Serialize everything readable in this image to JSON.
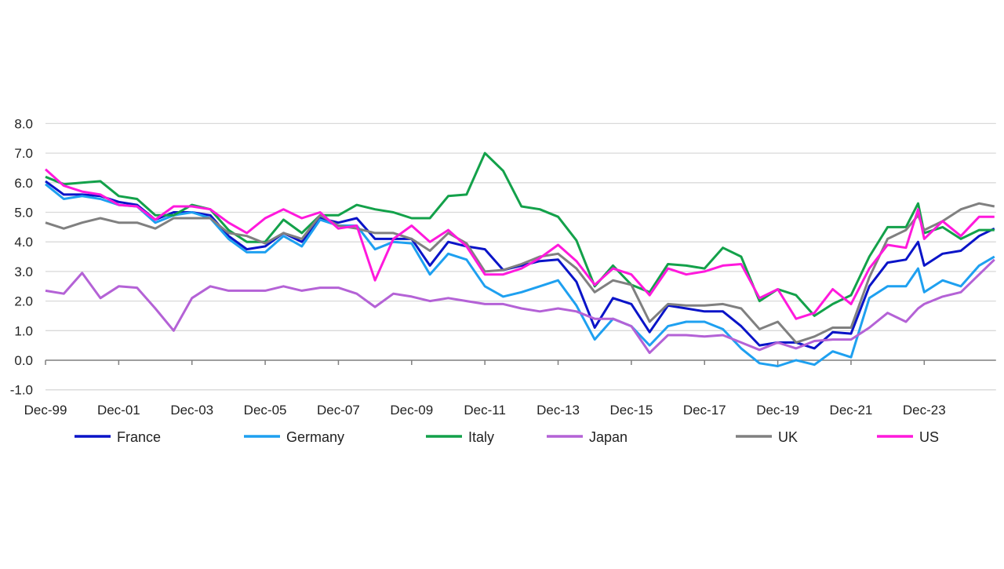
{
  "chart_data": {
    "type": "line",
    "title": "",
    "xlabel": "",
    "ylabel": "",
    "ylim": [
      -1,
      8
    ],
    "y_ticks": [
      "-1.0",
      "0.0",
      "1.0",
      "2.0",
      "3.0",
      "4.0",
      "5.0",
      "6.0",
      "7.0",
      "8.0"
    ],
    "x_tick_labels": [
      "Dec-99",
      "Dec-01",
      "Dec-03",
      "Dec-05",
      "Dec-07",
      "Dec-09",
      "Dec-11",
      "Dec-13",
      "Dec-15",
      "Dec-17",
      "Dec-19",
      "Dec-21",
      "Dec-23"
    ],
    "x_range": [
      "1999-12",
      "2025-11"
    ],
    "grid": "horizontal",
    "legend_position": "bottom",
    "x": [
      "1999-12",
      "2000-06",
      "2000-12",
      "2001-06",
      "2001-12",
      "2002-06",
      "2002-12",
      "2003-06",
      "2003-12",
      "2004-06",
      "2004-12",
      "2005-06",
      "2005-12",
      "2006-06",
      "2006-12",
      "2007-06",
      "2007-12",
      "2008-06",
      "2008-12",
      "2009-06",
      "2009-12",
      "2010-06",
      "2010-12",
      "2011-06",
      "2011-12",
      "2012-06",
      "2012-12",
      "2013-06",
      "2013-12",
      "2014-06",
      "2014-12",
      "2015-06",
      "2015-12",
      "2016-06",
      "2016-12",
      "2017-06",
      "2017-12",
      "2018-06",
      "2018-12",
      "2019-06",
      "2019-12",
      "2020-06",
      "2020-12",
      "2021-06",
      "2021-12",
      "2022-06",
      "2022-12",
      "2023-06",
      "2023-10",
      "2023-12",
      "2024-06",
      "2024-12",
      "2025-06",
      "2025-11"
    ],
    "series": [
      {
        "name": "France",
        "color": "#0a14c8",
        "values": [
          6.05,
          5.6,
          5.6,
          5.55,
          5.35,
          5.25,
          4.75,
          5.0,
          5.0,
          4.9,
          4.2,
          3.75,
          3.85,
          4.3,
          4.0,
          4.8,
          4.65,
          4.8,
          4.1,
          4.1,
          4.1,
          3.2,
          4.0,
          3.85,
          3.75,
          3.05,
          3.2,
          3.35,
          3.4,
          2.65,
          1.1,
          2.1,
          1.9,
          0.95,
          1.85,
          1.75,
          1.65,
          1.65,
          1.15,
          0.5,
          0.6,
          0.6,
          0.4,
          0.95,
          0.9,
          2.5,
          3.3,
          3.4,
          4.0,
          3.2,
          3.6,
          3.7,
          4.2,
          4.45
        ]
      },
      {
        "name": "Germany",
        "color": "#1ea0f0",
        "values": [
          5.95,
          5.45,
          5.55,
          5.45,
          5.25,
          5.2,
          4.65,
          4.9,
          5.0,
          4.8,
          4.1,
          3.65,
          3.65,
          4.2,
          3.85,
          4.75,
          4.55,
          4.55,
          3.75,
          4.0,
          3.95,
          2.9,
          3.6,
          3.4,
          2.5,
          2.15,
          2.3,
          2.5,
          2.7,
          1.85,
          0.7,
          1.4,
          1.15,
          0.5,
          1.15,
          1.3,
          1.3,
          1.05,
          0.4,
          -0.1,
          -0.2,
          0.0,
          -0.15,
          0.3,
          0.1,
          2.1,
          2.5,
          2.5,
          3.1,
          2.3,
          2.7,
          2.5,
          3.2,
          3.5
        ]
      },
      {
        "name": "Italy",
        "color": "#13a14a",
        "values": [
          6.2,
          5.95,
          6.0,
          6.05,
          5.55,
          5.45,
          4.9,
          4.9,
          5.25,
          5.1,
          4.4,
          4.0,
          4.0,
          4.75,
          4.3,
          4.9,
          4.9,
          5.25,
          5.1,
          5.0,
          4.8,
          4.8,
          5.55,
          5.6,
          7.0,
          6.4,
          5.2,
          5.1,
          4.85,
          4.05,
          2.5,
          3.2,
          2.55,
          2.3,
          3.25,
          3.2,
          3.1,
          3.8,
          3.5,
          2.0,
          2.4,
          2.2,
          1.5,
          1.9,
          2.2,
          3.5,
          4.5,
          4.5,
          5.3,
          4.3,
          4.5,
          4.1,
          4.4,
          4.4
        ]
      },
      {
        "name": "Japan",
        "color": "#b462d6",
        "values": [
          2.35,
          2.25,
          2.95,
          2.1,
          2.5,
          2.45,
          1.75,
          1.0,
          2.1,
          2.5,
          2.35,
          2.35,
          2.35,
          2.5,
          2.35,
          2.45,
          2.45,
          2.25,
          1.8,
          2.25,
          2.15,
          2.0,
          2.1,
          2.0,
          1.9,
          1.9,
          1.75,
          1.65,
          1.75,
          1.65,
          1.4,
          1.4,
          1.15,
          0.25,
          0.85,
          0.85,
          0.8,
          0.85,
          0.6,
          0.35,
          0.6,
          0.4,
          0.65,
          0.7,
          0.7,
          1.1,
          1.6,
          1.3,
          1.75,
          1.9,
          2.15,
          2.3,
          2.9,
          3.4
        ]
      },
      {
        "name": "UK",
        "color": "#808080",
        "values": [
          4.65,
          4.45,
          4.65,
          4.8,
          4.65,
          4.65,
          4.45,
          4.8,
          4.8,
          4.8,
          4.3,
          4.2,
          3.95,
          4.3,
          4.1,
          4.9,
          4.55,
          4.45,
          4.3,
          4.3,
          4.1,
          3.7,
          4.3,
          3.95,
          3.0,
          3.05,
          3.25,
          3.5,
          3.6,
          3.1,
          2.3,
          2.7,
          2.55,
          1.3,
          1.9,
          1.85,
          1.85,
          1.9,
          1.75,
          1.05,
          1.3,
          0.6,
          0.8,
          1.1,
          1.1,
          2.8,
          4.1,
          4.4,
          4.9,
          4.4,
          4.7,
          5.1,
          5.3,
          5.2
        ]
      },
      {
        "name": "US",
        "color": "#ff19dc",
        "values": [
          6.45,
          5.9,
          5.7,
          5.6,
          5.25,
          5.2,
          4.75,
          5.2,
          5.2,
          5.1,
          4.65,
          4.3,
          4.8,
          5.1,
          4.8,
          5.0,
          4.45,
          4.55,
          2.7,
          4.1,
          4.55,
          4.0,
          4.4,
          3.85,
          2.9,
          2.9,
          3.1,
          3.45,
          3.9,
          3.35,
          2.55,
          3.1,
          2.9,
          2.2,
          3.1,
          2.9,
          3.0,
          3.2,
          3.25,
          2.1,
          2.4,
          1.4,
          1.6,
          2.4,
          1.9,
          3.1,
          3.9,
          3.8,
          5.1,
          4.1,
          4.7,
          4.2,
          4.85,
          4.85
        ]
      }
    ]
  }
}
